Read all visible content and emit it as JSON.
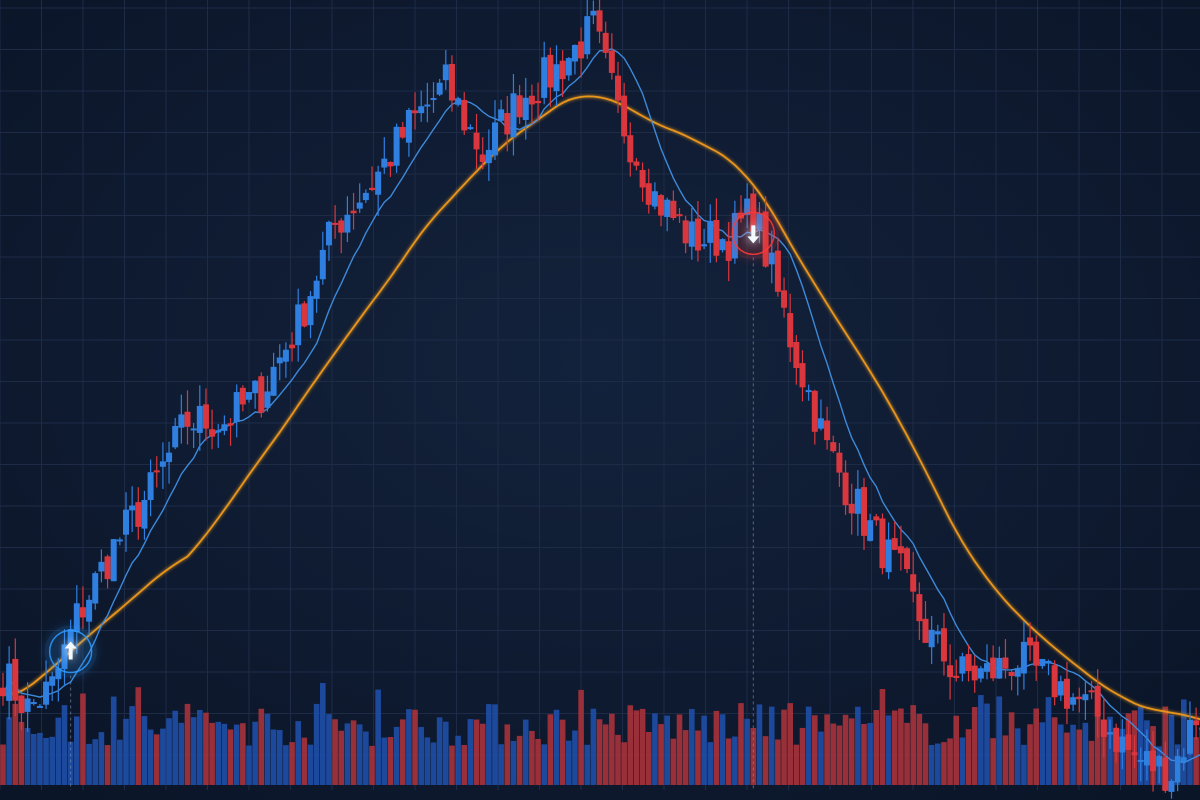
{
  "chart_data": {
    "type": "candlestick",
    "title": "",
    "xlabel": "",
    "ylabel": "",
    "grid": true,
    "ylim": [
      44,
      101
    ],
    "colors": {
      "background": "#0e1a30",
      "grid": "#1d2b47",
      "up": "#2f7fe0",
      "down": "#d9373d",
      "ma_fast": "#3f8fe4",
      "ma_slow": "#e8951f",
      "buy_signal": "#2f9bff",
      "sell_signal": "#ff3a3a",
      "volume_up": "#1e4fa8",
      "volume_down": "#a8323a"
    },
    "anchors": [
      [
        0,
        53
      ],
      [
        4,
        50.5
      ],
      [
        8,
        52
      ],
      [
        12,
        57
      ],
      [
        18,
        62
      ],
      [
        24,
        66
      ],
      [
        30,
        71
      ],
      [
        36,
        71
      ],
      [
        42,
        73
      ],
      [
        48,
        78
      ],
      [
        54,
        85
      ],
      [
        60,
        88
      ],
      [
        66,
        92
      ],
      [
        72,
        95
      ],
      [
        78,
        90
      ],
      [
        84,
        94
      ],
      [
        90,
        96
      ],
      [
        96,
        99
      ],
      [
        100,
        93
      ],
      [
        106,
        87
      ],
      [
        112,
        84
      ],
      [
        118,
        84
      ],
      [
        122,
        86
      ],
      [
        124,
        83
      ],
      [
        128,
        77
      ],
      [
        134,
        69
      ],
      [
        140,
        64
      ],
      [
        146,
        60
      ],
      [
        150,
        56
      ],
      [
        155,
        53
      ],
      [
        160,
        53
      ],
      [
        165,
        54
      ],
      [
        172,
        52
      ],
      [
        178,
        50
      ],
      [
        184,
        47
      ],
      [
        190,
        46
      ],
      [
        194,
        50
      ]
    ],
    "ma_fast_period": 10,
    "ma_slow_period": 60,
    "signals": [
      {
        "type": "buy",
        "symbol": "arrow-up",
        "bar": 11
      },
      {
        "type": "sell",
        "symbol": "arrow-down",
        "bar": 122
      }
    ],
    "volume_scale": [
      0,
      100
    ]
  }
}
